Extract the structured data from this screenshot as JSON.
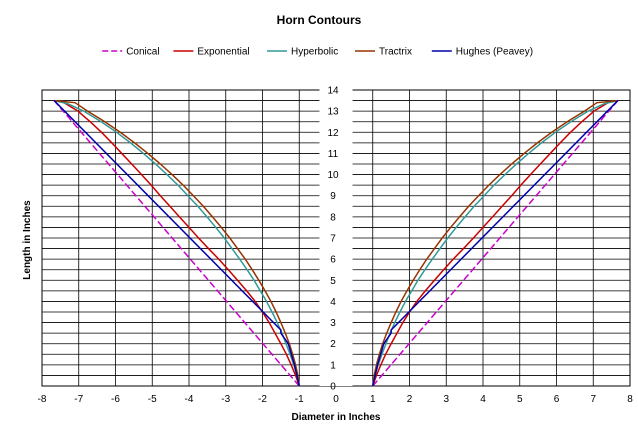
{
  "chart_data": {
    "type": "line",
    "title": "Horn Contours",
    "xlabel": "Diameter in Inches",
    "ylabel": "Length in Inches",
    "xlim": [
      -8,
      8
    ],
    "ylim": [
      0,
      14
    ],
    "x_ticks": [
      -8,
      -7,
      -6,
      -5,
      -4,
      -3,
      -2,
      -1,
      0,
      1,
      2,
      3,
      4,
      5,
      6,
      7,
      8
    ],
    "y_ticks": [
      0,
      1,
      2,
      3,
      4,
      5,
      6,
      7,
      8,
      9,
      10,
      11,
      12,
      13,
      14
    ],
    "grid": true,
    "legend_position": "top",
    "series": [
      {
        "name": "Conical",
        "color": "#cc00cc",
        "dashed": true,
        "right": [
          [
            1,
            0
          ],
          [
            7.67,
            13.5
          ]
        ]
      },
      {
        "name": "Exponential",
        "color": "#cc0000",
        "dashed": false,
        "right": [
          [
            1,
            0
          ],
          [
            1.1,
            0.5
          ],
          [
            1.22,
            1
          ],
          [
            1.35,
            1.5
          ],
          [
            1.5,
            2
          ],
          [
            1.66,
            2.5
          ],
          [
            1.82,
            3
          ],
          [
            2.0,
            3.5
          ],
          [
            2.2,
            4
          ],
          [
            2.43,
            4.5
          ],
          [
            2.68,
            5
          ],
          [
            2.93,
            5.5
          ],
          [
            3.19,
            6
          ],
          [
            3.47,
            6.5
          ],
          [
            3.74,
            7
          ],
          [
            4.0,
            7.5
          ],
          [
            4.26,
            8
          ],
          [
            4.52,
            8.5
          ],
          [
            4.78,
            9
          ],
          [
            5.03,
            9.5
          ],
          [
            5.29,
            10
          ],
          [
            5.56,
            10.5
          ],
          [
            5.83,
            11
          ],
          [
            6.1,
            11.5
          ],
          [
            6.38,
            12
          ],
          [
            6.69,
            12.5
          ],
          [
            7.02,
            13
          ],
          [
            7.4,
            13.4
          ],
          [
            7.67,
            13.5
          ]
        ]
      },
      {
        "name": "Hyperbolic",
        "color": "#339999",
        "dashed": false,
        "right": [
          [
            1,
            0
          ],
          [
            1.06,
            0.5
          ],
          [
            1.15,
            1
          ],
          [
            1.25,
            1.5
          ],
          [
            1.36,
            2
          ],
          [
            1.47,
            2.5
          ],
          [
            1.6,
            3
          ],
          [
            1.74,
            3.5
          ],
          [
            1.89,
            4
          ],
          [
            2.06,
            4.5
          ],
          [
            2.23,
            5
          ],
          [
            2.42,
            5.5
          ],
          [
            2.62,
            6
          ],
          [
            2.83,
            6.5
          ],
          [
            3.04,
            7
          ],
          [
            3.27,
            7.5
          ],
          [
            3.51,
            8
          ],
          [
            3.76,
            8.5
          ],
          [
            4.03,
            9
          ],
          [
            4.3,
            9.5
          ],
          [
            4.6,
            10
          ],
          [
            4.91,
            10.5
          ],
          [
            5.24,
            11
          ],
          [
            5.59,
            11.5
          ],
          [
            5.97,
            12
          ],
          [
            6.39,
            12.5
          ],
          [
            6.86,
            13
          ],
          [
            7.3,
            13.35
          ],
          [
            7.67,
            13.5
          ]
        ]
      },
      {
        "name": "Tractrix",
        "color": "#993300",
        "dashed": false,
        "right": [
          [
            1,
            0
          ],
          [
            1.04,
            0.5
          ],
          [
            1.1,
            1
          ],
          [
            1.18,
            1.5
          ],
          [
            1.27,
            2
          ],
          [
            1.38,
            2.5
          ],
          [
            1.5,
            3
          ],
          [
            1.63,
            3.5
          ],
          [
            1.77,
            4
          ],
          [
            1.93,
            4.5
          ],
          [
            2.1,
            5
          ],
          [
            2.28,
            5.5
          ],
          [
            2.47,
            6
          ],
          [
            2.68,
            6.5
          ],
          [
            2.89,
            7
          ],
          [
            3.12,
            7.5
          ],
          [
            3.36,
            8
          ],
          [
            3.61,
            8.5
          ],
          [
            3.88,
            9
          ],
          [
            4.16,
            9.5
          ],
          [
            4.46,
            10
          ],
          [
            4.78,
            10.5
          ],
          [
            5.12,
            11
          ],
          [
            5.48,
            11.5
          ],
          [
            5.87,
            12
          ],
          [
            6.29,
            12.5
          ],
          [
            6.76,
            13
          ],
          [
            7.1,
            13.4
          ],
          [
            7.67,
            13.5
          ]
        ]
      },
      {
        "name": "Hughes (Peavey)",
        "color": "#0000aa",
        "dashed": false,
        "right": [
          [
            1,
            0
          ],
          [
            1.13,
            1
          ],
          [
            1.3,
            2
          ],
          [
            1.5,
            2.5
          ],
          [
            1.5,
            2.65
          ],
          [
            7.67,
            13.5
          ]
        ]
      }
    ]
  }
}
